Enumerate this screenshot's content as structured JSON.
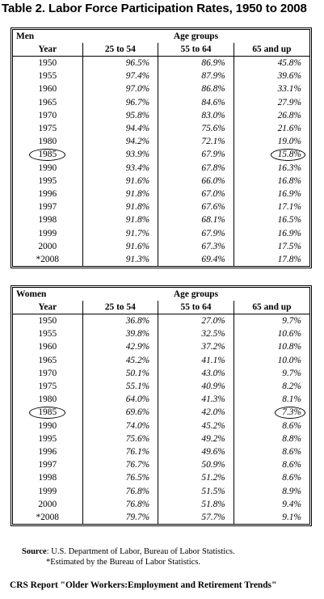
{
  "title": "Table 2.  Labor Force Participation Rates, 1950 to 2008",
  "headers": {
    "age_groups": "Age groups",
    "year": "Year",
    "col1": "25 to 54",
    "col2": "55 to 64",
    "col3": "65 and up"
  },
  "men": {
    "label": "Men",
    "rows": [
      {
        "year": "1950",
        "a": "96.5%",
        "b": "86.9%",
        "c": "45.8%"
      },
      {
        "year": "1955",
        "a": "97.4%",
        "b": "87.9%",
        "c": "39.6%"
      },
      {
        "year": "1960",
        "a": "97.0%",
        "b": "86.8%",
        "c": "33.1%"
      },
      {
        "year": "1965",
        "a": "96.7%",
        "b": "84.6%",
        "c": "27.9%"
      },
      {
        "year": "1970",
        "a": "95.8%",
        "b": "83.0%",
        "c": "26.8%"
      },
      {
        "year": "1975",
        "a": "94.4%",
        "b": "75.6%",
        "c": "21.6%"
      },
      {
        "year": "1980",
        "a": "94.2%",
        "b": "72.1%",
        "c": "19.0%"
      },
      {
        "year": "1985",
        "a": "93.9%",
        "b": "67.9%",
        "c": "15.8%",
        "circled": true
      },
      {
        "year": "1990",
        "a": "93.4%",
        "b": "67.8%",
        "c": "16.3%"
      },
      {
        "year": "1995",
        "a": "91.6%",
        "b": "66.0%",
        "c": "16.8%"
      },
      {
        "year": "1996",
        "a": "91.8%",
        "b": "67.0%",
        "c": "16.9%"
      },
      {
        "year": "1997",
        "a": "91.8%",
        "b": "67.6%",
        "c": "17.1%"
      },
      {
        "year": "1998",
        "a": "91.8%",
        "b": "68.1%",
        "c": "16.5%"
      },
      {
        "year": "1999",
        "a": "91.7%",
        "b": "67.9%",
        "c": "16.9%"
      },
      {
        "year": "2000",
        "a": "91.6%",
        "b": "67.3%",
        "c": "17.5%"
      },
      {
        "year": "*2008",
        "a": "91.3%",
        "b": "69.4%",
        "c": "17.8%"
      }
    ]
  },
  "women": {
    "label": "Women",
    "rows": [
      {
        "year": "1950",
        "a": "36.8%",
        "b": "27.0%",
        "c": "9.7%"
      },
      {
        "year": "1955",
        "a": "39.8%",
        "b": "32.5%",
        "c": "10.6%"
      },
      {
        "year": "1960",
        "a": "42.9%",
        "b": "37.2%",
        "c": "10.8%"
      },
      {
        "year": "1965",
        "a": "45.2%",
        "b": "41.1%",
        "c": "10.0%"
      },
      {
        "year": "1970",
        "a": "50.1%",
        "b": "43.0%",
        "c": "9.7%"
      },
      {
        "year": "1975",
        "a": "55.1%",
        "b": "40.9%",
        "c": "8.2%"
      },
      {
        "year": "1980",
        "a": "64.0%",
        "b": "41.3%",
        "c": "8.1%"
      },
      {
        "year": "1985",
        "a": "69.6%",
        "b": "42.0%",
        "c": "7.3%",
        "circled": true
      },
      {
        "year": "1990",
        "a": "74.0%",
        "b": "45.2%",
        "c": "8.6%"
      },
      {
        "year": "1995",
        "a": "75.6%",
        "b": "49.2%",
        "c": "8.8%"
      },
      {
        "year": "1996",
        "a": "76.1%",
        "b": "49.6%",
        "c": "8.6%"
      },
      {
        "year": "1997",
        "a": "76.7%",
        "b": "50.9%",
        "c": "8.6%"
      },
      {
        "year": "1998",
        "a": "76.5%",
        "b": "51.2%",
        "c": "8.6%"
      },
      {
        "year": "1999",
        "a": "76.8%",
        "b": "51.5%",
        "c": "8.9%"
      },
      {
        "year": "2000",
        "a": "76.8%",
        "b": "51.8%",
        "c": "9.4%"
      },
      {
        "year": "*2008",
        "a": "79.7%",
        "b": "57.7%",
        "c": "9.1%"
      }
    ]
  },
  "notes": {
    "source_label": "Source",
    "source_text": ": U.S. Department of Labor, Bureau of Labor Statistics.",
    "estimated": "*Estimated by the Bureau of Labor Statistics."
  },
  "report": "CRS Report \"Older Workers:Employment and Retirement Trends\""
}
